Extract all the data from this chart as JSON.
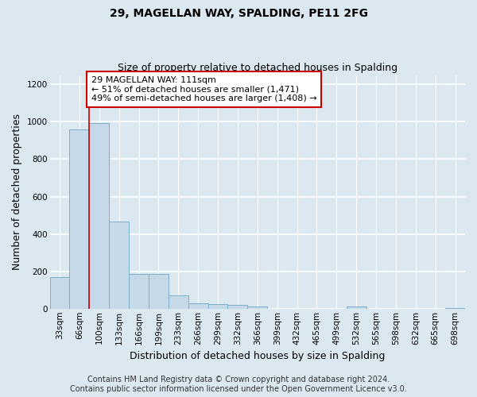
{
  "title1": "29, MAGELLAN WAY, SPALDING, PE11 2FG",
  "title2": "Size of property relative to detached houses in Spalding",
  "xlabel": "Distribution of detached houses by size in Spalding",
  "ylabel": "Number of detached properties",
  "categories": [
    "33sqm",
    "66sqm",
    "100sqm",
    "133sqm",
    "166sqm",
    "199sqm",
    "233sqm",
    "266sqm",
    "299sqm",
    "332sqm",
    "366sqm",
    "399sqm",
    "432sqm",
    "465sqm",
    "499sqm",
    "532sqm",
    "565sqm",
    "598sqm",
    "632sqm",
    "665sqm",
    "698sqm"
  ],
  "values": [
    170,
    960,
    995,
    465,
    185,
    185,
    70,
    30,
    25,
    20,
    12,
    0,
    0,
    0,
    0,
    12,
    0,
    0,
    0,
    0,
    5
  ],
  "bar_color": "#c5d9e8",
  "bar_edge_color": "#7aaec8",
  "vline_x_idx": 1.5,
  "vline_color": "#cc0000",
  "annotation_text": "29 MAGELLAN WAY: 111sqm\n← 51% of detached houses are smaller (1,471)\n49% of semi-detached houses are larger (1,408) →",
  "annotation_box_color": "white",
  "annotation_box_edgecolor": "#cc0000",
  "ylim": [
    0,
    1250
  ],
  "yticks": [
    0,
    200,
    400,
    600,
    800,
    1000,
    1200
  ],
  "footnote": "Contains HM Land Registry data © Crown copyright and database right 2024.\nContains public sector information licensed under the Open Government Licence v3.0.",
  "bg_color": "#dce8f0",
  "plot_bg_color": "#dce8f0",
  "grid_color": "white",
  "title1_fontsize": 10,
  "title2_fontsize": 9,
  "xlabel_fontsize": 9,
  "ylabel_fontsize": 9,
  "tick_fontsize": 7.5,
  "annotation_fontsize": 8,
  "footnote_fontsize": 7
}
